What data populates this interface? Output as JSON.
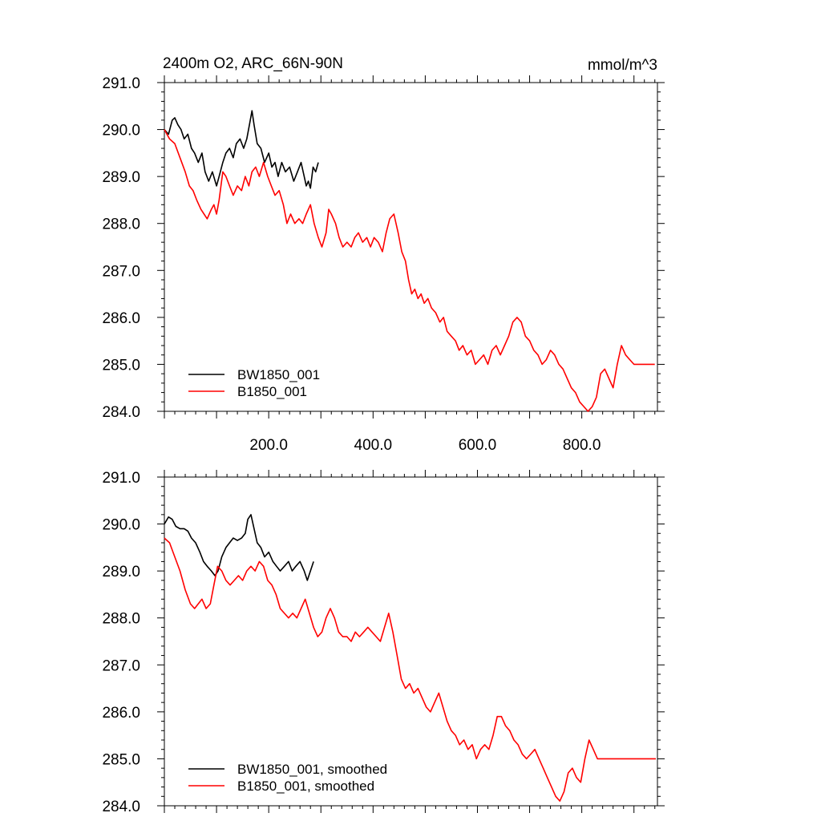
{
  "chart_data": [
    {
      "type": "line",
      "title": "2400m O2, ARC_66N-90N",
      "units": "mmol/m^3",
      "xlim": [
        0,
        945
      ],
      "ylim": [
        284.0,
        291.0
      ],
      "y_ticks": [
        "284.0",
        "285.0",
        "286.0",
        "287.0",
        "288.0",
        "289.0",
        "290.0",
        "291.0"
      ],
      "x_ticks": [
        "200.0",
        "400.0",
        "600.0",
        "800.0"
      ],
      "x_tick_values": [
        200,
        400,
        600,
        800
      ],
      "legend_position": "bottom-left",
      "series": [
        {
          "name": "BW1850_001",
          "color": "#000000",
          "x": [
            0,
            8,
            15,
            20,
            26,
            32,
            38,
            45,
            52,
            58,
            65,
            72,
            78,
            85,
            92,
            100,
            105,
            112,
            118,
            125,
            132,
            138,
            145,
            152,
            158,
            163,
            168,
            172,
            178,
            185,
            192,
            200,
            206,
            212,
            218,
            225,
            232,
            240,
            248,
            255,
            262,
            268,
            272,
            276,
            280,
            285,
            290,
            295
          ],
          "y": [
            290.0,
            289.9,
            290.2,
            290.25,
            290.1,
            290.0,
            289.8,
            289.9,
            289.6,
            289.5,
            289.3,
            289.5,
            289.1,
            288.9,
            289.1,
            288.8,
            289.0,
            289.3,
            289.5,
            289.6,
            289.4,
            289.7,
            289.8,
            289.6,
            289.8,
            290.1,
            290.4,
            290.1,
            289.7,
            289.6,
            289.3,
            289.5,
            289.2,
            289.3,
            289.0,
            289.3,
            289.1,
            289.2,
            288.9,
            289.1,
            289.3,
            289.0,
            288.8,
            288.9,
            288.75,
            289.2,
            289.1,
            289.3
          ]
        },
        {
          "name": "B1850_001",
          "color": "#ff0000",
          "x": [
            0,
            10,
            20,
            30,
            40,
            48,
            55,
            62,
            70,
            76,
            82,
            90,
            95,
            100,
            105,
            112,
            118,
            125,
            132,
            140,
            148,
            155,
            162,
            168,
            175,
            182,
            190,
            198,
            205,
            212,
            220,
            228,
            235,
            242,
            250,
            258,
            265,
            272,
            280,
            287,
            295,
            302,
            310,
            315,
            320,
            328,
            335,
            342,
            350,
            358,
            365,
            372,
            380,
            388,
            395,
            402,
            410,
            418,
            425,
            432,
            440,
            448,
            455,
            462,
            468,
            474,
            480,
            486,
            492,
            498,
            505,
            512,
            520,
            528,
            535,
            542,
            550,
            558,
            565,
            572,
            580,
            588,
            596,
            604,
            612,
            620,
            628,
            636,
            644,
            652,
            660,
            668,
            676,
            684,
            692,
            700,
            708,
            716,
            724,
            732,
            740,
            748,
            756,
            764,
            772,
            780,
            788,
            796,
            804,
            812,
            820,
            828,
            836,
            844,
            852,
            860,
            868,
            876,
            884,
            892,
            900,
            908,
            916,
            924,
            932,
            940
          ],
          "y": [
            290.0,
            289.8,
            289.7,
            289.4,
            289.1,
            288.8,
            288.7,
            288.5,
            288.3,
            288.2,
            288.1,
            288.3,
            288.4,
            288.2,
            288.5,
            289.1,
            289.0,
            288.8,
            288.6,
            288.8,
            288.7,
            289.0,
            288.8,
            289.1,
            289.2,
            289.0,
            289.3,
            289.0,
            288.8,
            288.6,
            288.7,
            288.4,
            288.0,
            288.2,
            288.0,
            288.1,
            288.0,
            288.2,
            288.4,
            288.0,
            287.7,
            287.5,
            287.8,
            288.3,
            288.2,
            288.0,
            287.7,
            287.5,
            287.6,
            287.5,
            287.7,
            287.8,
            287.6,
            287.7,
            287.5,
            287.7,
            287.6,
            287.4,
            287.8,
            288.1,
            288.2,
            287.8,
            287.4,
            287.2,
            286.8,
            286.5,
            286.6,
            286.4,
            286.5,
            286.3,
            286.4,
            286.2,
            286.1,
            285.9,
            286.0,
            285.7,
            285.6,
            285.5,
            285.3,
            285.4,
            285.2,
            285.3,
            285.0,
            285.1,
            285.2,
            285.0,
            285.3,
            285.4,
            285.2,
            285.4,
            285.6,
            285.9,
            286.0,
            285.9,
            285.6,
            285.5,
            285.3,
            285.2,
            285.0,
            285.1,
            285.3,
            285.2,
            285.0,
            284.9,
            284.7,
            284.5,
            284.4,
            284.2,
            284.1,
            284.0,
            284.1,
            284.3,
            284.8,
            284.9,
            284.7,
            284.5,
            285.0,
            285.4,
            285.2,
            285.1,
            285.0,
            285.0,
            285.0,
            285.0,
            285.0,
            285.0
          ]
        }
      ]
    },
    {
      "type": "line",
      "title": "",
      "xlim": [
        0,
        945
      ],
      "ylim": [
        284.0,
        291.0
      ],
      "y_ticks": [
        "284.0",
        "285.0",
        "286.0",
        "287.0",
        "288.0",
        "289.0",
        "290.0",
        "291.0"
      ],
      "legend_position": "bottom-left",
      "series": [
        {
          "name": "BW1850_001, smoothed",
          "color": "#000000",
          "x": [
            0,
            8,
            15,
            22,
            30,
            38,
            45,
            52,
            60,
            68,
            75,
            82,
            90,
            97,
            103,
            110,
            118,
            125,
            132,
            140,
            148,
            155,
            160,
            166,
            172,
            178,
            185,
            192,
            200,
            208,
            215,
            222,
            230,
            238,
            245,
            252,
            260,
            268,
            274,
            280,
            286
          ],
          "y": [
            290.0,
            290.15,
            290.1,
            289.95,
            289.9,
            289.9,
            289.85,
            289.7,
            289.6,
            289.4,
            289.2,
            289.1,
            289.0,
            288.9,
            289.0,
            289.3,
            289.5,
            289.6,
            289.7,
            289.65,
            289.7,
            289.8,
            290.1,
            290.2,
            289.9,
            289.6,
            289.5,
            289.3,
            289.4,
            289.2,
            289.1,
            289.0,
            289.1,
            289.2,
            289.0,
            289.1,
            289.2,
            289.0,
            288.8,
            289.0,
            289.2
          ]
        },
        {
          "name": "B1850_001, smoothed",
          "color": "#ff0000",
          "x": [
            0,
            10,
            20,
            30,
            40,
            50,
            58,
            65,
            72,
            80,
            88,
            95,
            102,
            110,
            118,
            126,
            134,
            142,
            150,
            158,
            166,
            174,
            182,
            190,
            198,
            206,
            214,
            222,
            230,
            238,
            246,
            254,
            262,
            270,
            278,
            286,
            294,
            302,
            310,
            318,
            326,
            334,
            342,
            350,
            358,
            366,
            374,
            382,
            390,
            398,
            406,
            414,
            422,
            430,
            438,
            446,
            454,
            462,
            470,
            478,
            486,
            494,
            502,
            510,
            518,
            526,
            534,
            542,
            550,
            558,
            566,
            574,
            582,
            590,
            598,
            606,
            614,
            622,
            630,
            638,
            646,
            654,
            662,
            670,
            678,
            686,
            694,
            702,
            710,
            718,
            726,
            734,
            742,
            750,
            758,
            766,
            774,
            782,
            790,
            798,
            806,
            814,
            822,
            830,
            838,
            846,
            854,
            862,
            870,
            878,
            886,
            894,
            902,
            910,
            918,
            926,
            934,
            942
          ],
          "y": [
            289.7,
            289.6,
            289.3,
            289.0,
            288.6,
            288.3,
            288.2,
            288.3,
            288.4,
            288.2,
            288.3,
            288.7,
            289.1,
            289.0,
            288.8,
            288.7,
            288.8,
            288.9,
            288.8,
            289.0,
            289.1,
            289.0,
            289.2,
            289.1,
            288.8,
            288.7,
            288.5,
            288.2,
            288.1,
            288.0,
            288.1,
            288.0,
            288.2,
            288.4,
            288.1,
            287.8,
            287.6,
            287.7,
            288.0,
            288.2,
            288.0,
            287.7,
            287.6,
            287.6,
            287.5,
            287.7,
            287.6,
            287.7,
            287.8,
            287.7,
            287.6,
            287.5,
            287.8,
            288.1,
            287.7,
            287.2,
            286.7,
            286.5,
            286.6,
            286.4,
            286.5,
            286.3,
            286.1,
            286.0,
            286.2,
            286.4,
            286.1,
            285.8,
            285.6,
            285.5,
            285.3,
            285.4,
            285.2,
            285.3,
            285.0,
            285.2,
            285.3,
            285.2,
            285.5,
            285.9,
            285.9,
            285.7,
            285.6,
            285.4,
            285.3,
            285.1,
            285.0,
            285.1,
            285.2,
            285.0,
            284.8,
            284.6,
            284.4,
            284.2,
            284.1,
            284.3,
            284.7,
            284.8,
            284.6,
            284.5,
            285.0,
            285.4,
            285.2,
            285.0,
            285.0,
            285.0,
            285.0,
            285.0,
            285.0,
            285.0,
            285.0,
            285.0,
            285.0,
            285.0,
            285.0,
            285.0,
            285.0,
            285.0
          ]
        }
      ]
    }
  ]
}
